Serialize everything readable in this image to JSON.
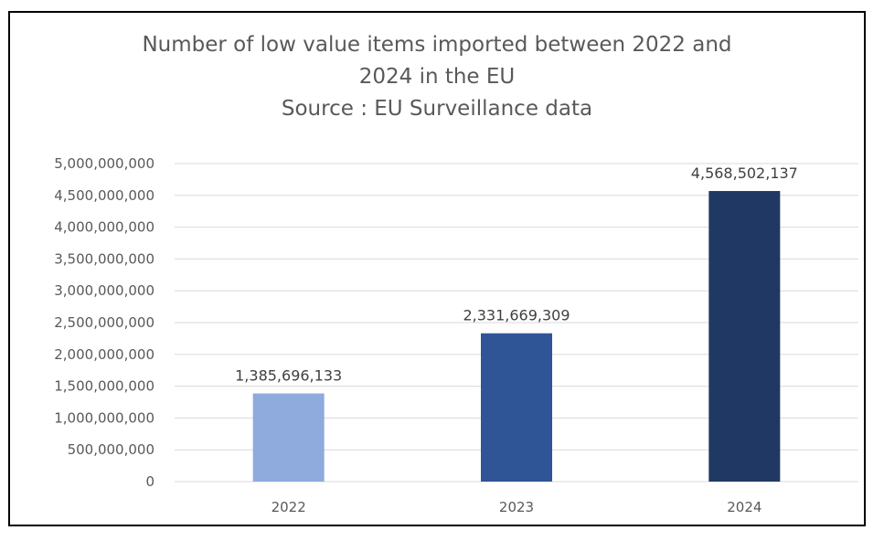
{
  "chart_data": {
    "type": "bar",
    "title_lines": [
      "Number of low value items imported between 2022 and",
      "2024 in the EU",
      "Source : EU Surveillance data"
    ],
    "categories": [
      "2022",
      "2023",
      "2024"
    ],
    "values": [
      1385696133,
      2331669309,
      4568502137
    ],
    "data_labels": [
      "1,385,696,133",
      "2,331,669,309",
      "4,568,502,137"
    ],
    "bar_colors": [
      "#8faadc",
      "#2f5597",
      "#203864"
    ],
    "y_ticks": [
      "0",
      "500,000,000",
      "1,000,000,000",
      "1,500,000,000",
      "2,000,000,000",
      "2,500,000,000",
      "3,000,000,000",
      "3,500,000,000",
      "4,000,000,000",
      "4,500,000,000",
      "5,000,000,000"
    ],
    "ylim": [
      0,
      5000000000
    ],
    "grid": true,
    "legend": "none"
  }
}
